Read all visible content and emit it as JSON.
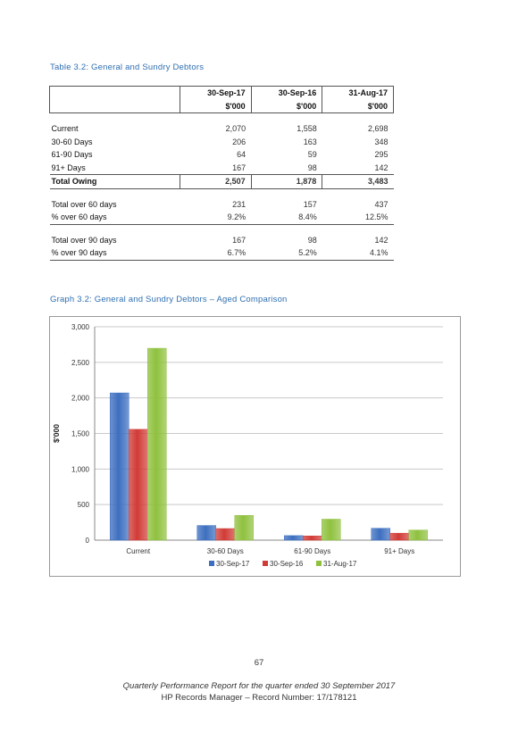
{
  "table_caption": "Table 3.2:  General and Sundry Debtors",
  "table": {
    "headers": [
      "30-Sep-17",
      "30-Sep-16",
      "31-Aug-17"
    ],
    "units": [
      "$'000",
      "$'000",
      "$'000"
    ],
    "rows": [
      {
        "label": "Current",
        "values": [
          "2,070",
          "1,558",
          "2,698"
        ]
      },
      {
        "label": "30-60 Days",
        "values": [
          "206",
          "163",
          "348"
        ]
      },
      {
        "label": "61-90 Days",
        "values": [
          "64",
          "59",
          "295"
        ]
      },
      {
        "label": "91+ Days",
        "values": [
          "167",
          "98",
          "142"
        ]
      }
    ],
    "total": {
      "label": "Total Owing",
      "values": [
        "2,507",
        "1,878",
        "3,483"
      ]
    },
    "over60": [
      {
        "label": "Total over 60 days",
        "values": [
          "231",
          "157",
          "437"
        ]
      },
      {
        "label": "% over 60 days",
        "values": [
          "9.2%",
          "8.4%",
          "12.5%"
        ]
      }
    ],
    "over90": [
      {
        "label": "Total over 90 days",
        "values": [
          "167",
          "98",
          "142"
        ]
      },
      {
        "label": "% over 90 days",
        "values": [
          "6.7%",
          "5.2%",
          "4.1%"
        ]
      }
    ]
  },
  "graph_caption": "Graph 3.2:  General and Sundry Debtors – Aged Comparison",
  "chart_data": {
    "type": "bar",
    "categories": [
      "Current",
      "30-60 Days",
      "61-90 Days",
      "91+ Days"
    ],
    "series": [
      {
        "name": "30-Sep-17",
        "values": [
          2070,
          206,
          64,
          167
        ],
        "color": "#3d6fc0"
      },
      {
        "name": "30-Sep-16",
        "values": [
          1558,
          163,
          59,
          98
        ],
        "color": "#d13b36"
      },
      {
        "name": "31-Aug-17",
        "values": [
          2698,
          348,
          295,
          142
        ],
        "color": "#8fc13e"
      }
    ],
    "ylabel": "$'000",
    "ylim": [
      0,
      3000
    ],
    "yticks": [
      0,
      500,
      1000,
      1500,
      2000,
      2500,
      3000
    ],
    "ytick_labels": [
      "0",
      "500",
      "1,000",
      "1,500",
      "2,000",
      "2,500",
      "3,000"
    ],
    "grid": true,
    "legend_position": "bottom"
  },
  "page_number": "67",
  "footer_line1": "Quarterly Performance Report for the quarter ended 30 September 2017",
  "footer_line2": "HP Records Manager – Record Number: 17/178121"
}
